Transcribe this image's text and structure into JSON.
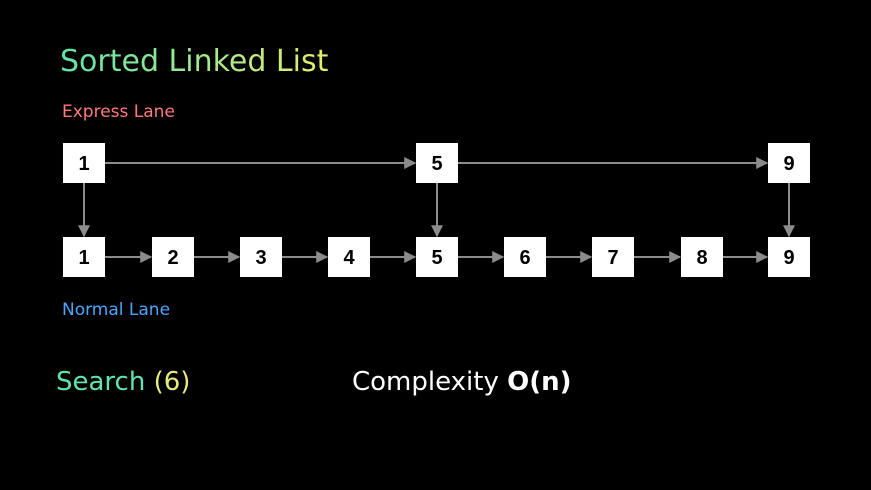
{
  "title": "Sorted Linked List",
  "express_label": "Express Lane",
  "normal_label": "Normal Lane",
  "express_nodes": [
    "1",
    "5",
    "9"
  ],
  "normal_nodes": [
    "1",
    "2",
    "3",
    "4",
    "5",
    "6",
    "7",
    "8",
    "9"
  ],
  "search": {
    "label": "Search",
    "argument": "(6)"
  },
  "complexity": {
    "label": "Complexity",
    "value": "O(n)"
  },
  "colors": {
    "background": "#000000",
    "node_fill": "#ffffff",
    "arrow": "#8c8c8c",
    "express_label": "#ff7a7a",
    "normal_label": "#4aa6ff",
    "search_word": "#5fe3b0",
    "search_argument": "#e6ec77"
  }
}
